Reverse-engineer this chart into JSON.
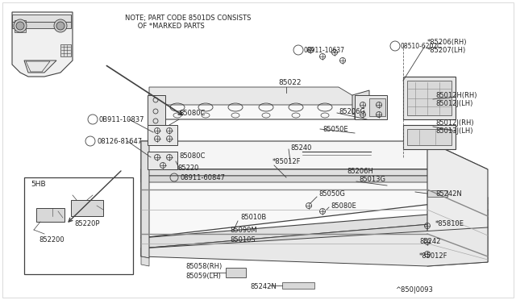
{
  "bg_color": "#ffffff",
  "line_color": "#404040",
  "text_color": "#222222",
  "note_line1": "NOTE; PART CODE 8501DS CONSISTS",
  "note_line2": "      OF *MARKED PARTS",
  "ref": "^850|0093"
}
